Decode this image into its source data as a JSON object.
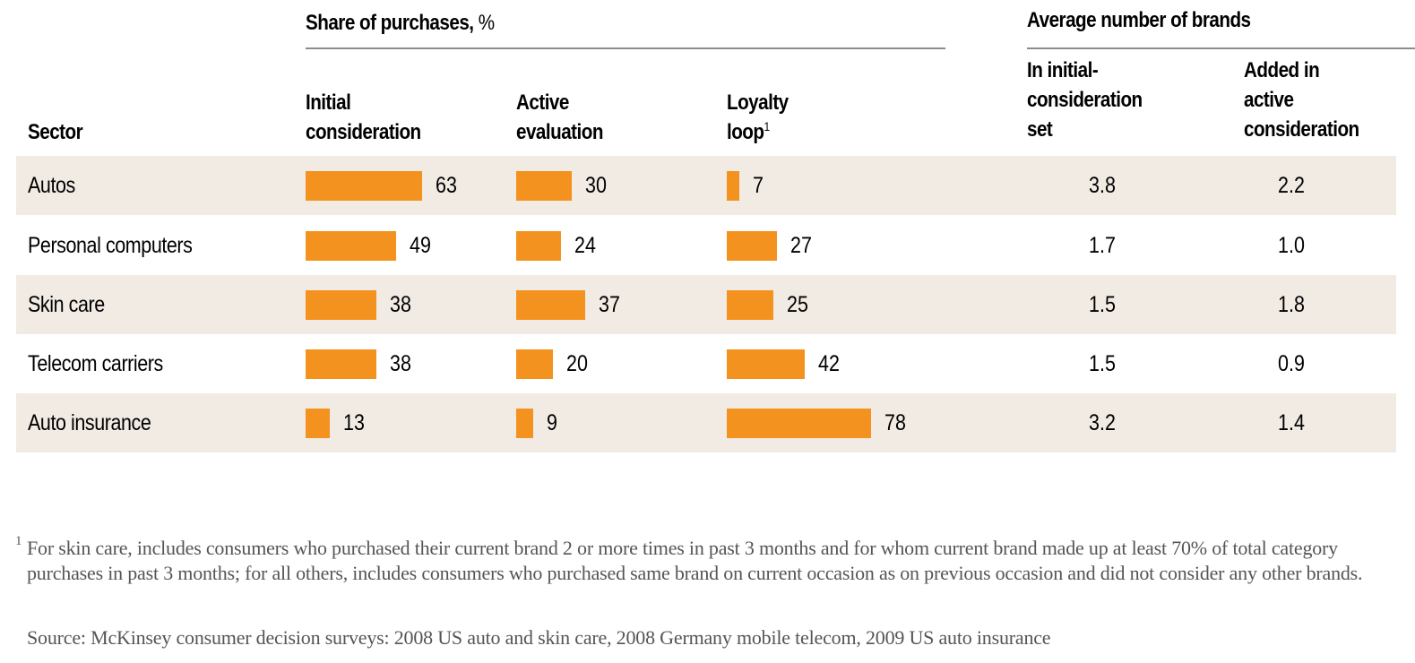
{
  "header": {
    "share_group_title": "Share of purchases,",
    "share_group_unit": " %",
    "brands_group_title": "Average number of brands",
    "col_sector": "Sector",
    "col_initial_line1": "Initial",
    "col_initial_line2": "consideration",
    "col_active_line1": "Active",
    "col_active_line2": "evaluation",
    "col_loyalty_line1": "Loyalty",
    "col_loyalty_line2": "loop",
    "col_loyalty_footnote": "1",
    "col_brands_initial_line1": "In initial-",
    "col_brands_initial_line2": "consideration",
    "col_brands_initial_line3": "set",
    "col_brands_added_line1": "Added in",
    "col_brands_added_line2": "active",
    "col_brands_added_line3": "consideration"
  },
  "colors": {
    "bar": "#f3921e",
    "row_shade": "#f1ebe4",
    "rule": "#8c8c8c",
    "footnote_text": "#555555"
  },
  "chart_data": {
    "type": "table",
    "title": "Share of purchases, % and Average number of brands by sector",
    "categories": [
      "Autos",
      "Personal computers",
      "Skin care",
      "Telecom carriers",
      "Auto insurance"
    ],
    "series": [
      {
        "name": "Initial consideration",
        "unit": "%",
        "values": [
          63,
          49,
          38,
          38,
          13
        ]
      },
      {
        "name": "Active evaluation",
        "unit": "%",
        "values": [
          30,
          24,
          37,
          20,
          9
        ]
      },
      {
        "name": "Loyalty loop",
        "unit": "%",
        "values": [
          7,
          27,
          25,
          42,
          78
        ]
      },
      {
        "name": "In initial-consideration set",
        "unit": "brands",
        "values": [
          "3.8",
          "1.7",
          "1.5",
          "1.5",
          "3.2"
        ]
      },
      {
        "name": "Added in active consideration",
        "unit": "brands",
        "values": [
          "2.2",
          "1.0",
          "1.8",
          "0.9",
          "1.4"
        ]
      }
    ],
    "bar_scale_max": 100
  },
  "footnote": {
    "marker": "1",
    "text": "For skin care, includes consumers who purchased their current brand 2 or more times in past 3 months and for whom current brand made up at least 70% of total category purchases in past 3 months; for all others, includes consumers who purchased same brand on current occasion as on previous occasion and did not consider any other brands."
  },
  "source": "Source: McKinsey consumer decision surveys: 2008 US auto and skin care, 2008 Germany mobile telecom, 2009 US auto insurance"
}
